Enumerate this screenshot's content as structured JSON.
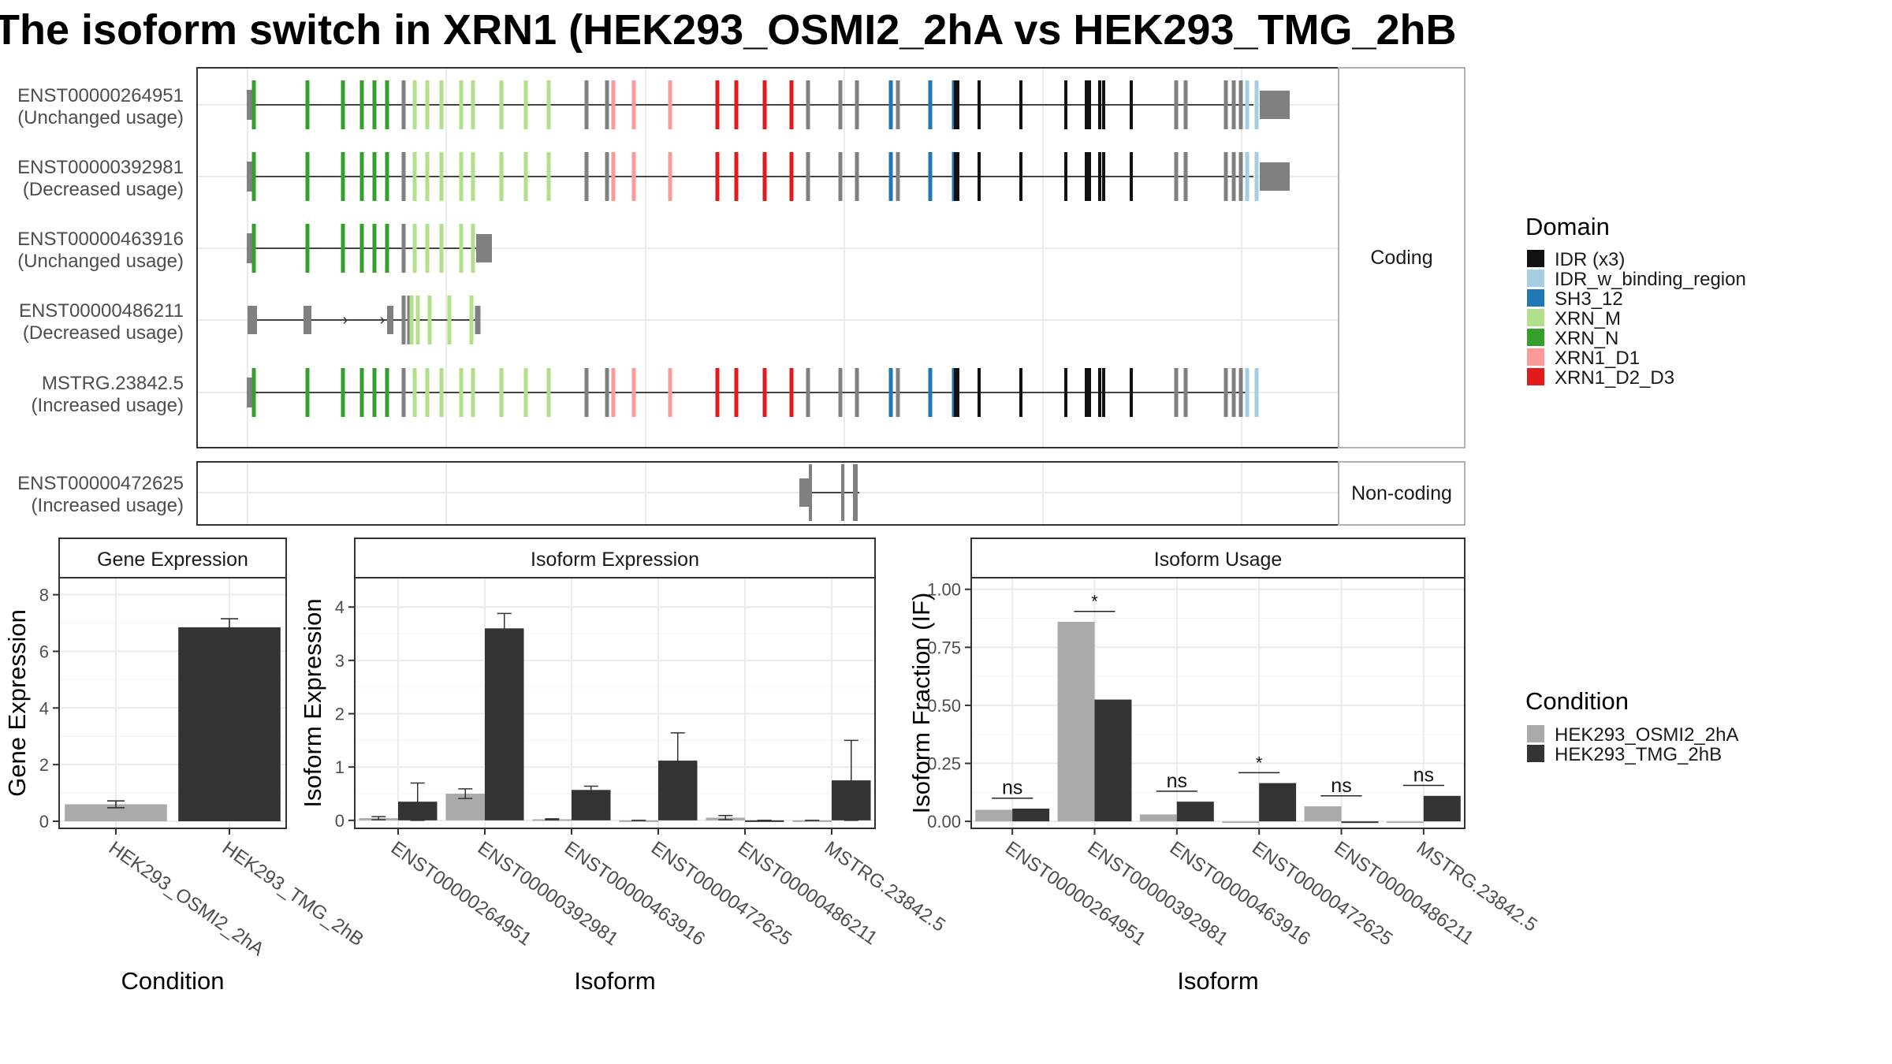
{
  "title": "The isoform switch in XRN1 (HEK293_OSMI2_2hA vs HEK293_TMG_2hB",
  "colors": {
    "IDR": "#111111",
    "IDR_w_binding_region": "#a6cee3",
    "SH3_12": "#1f78b4",
    "XRN_M": "#b2df8a",
    "XRN_N": "#33a02c",
    "XRN1_D1": "#fb9a99",
    "XRN1_D2_D3": "#e31a1c",
    "none": "#808080",
    "condA": "#aaaaaa",
    "condB": "#333333",
    "grid": "#ebebeb",
    "strip_bg": "#ffffff"
  },
  "transcripts": {
    "panels": [
      {
        "strip": "Coding",
        "rows": [
          {
            "id": "ENST00000264951",
            "usage": "(Unchanged usage)",
            "type": "full"
          },
          {
            "id": "ENST00000392981",
            "usage": "(Decreased usage)",
            "type": "full"
          },
          {
            "id": "ENST00000463916",
            "usage": "(Unchanged usage)",
            "type": "short463"
          },
          {
            "id": "ENST00000486211",
            "usage": "(Decreased usage)",
            "type": "short486"
          },
          {
            "id": "MSTRG.23842.5",
            "usage": "(Increased usage)",
            "type": "mstrg"
          }
        ]
      },
      {
        "strip": "Non-coding",
        "rows": [
          {
            "id": "ENST00000472625",
            "usage": "(Increased usage)",
            "type": "nc472"
          }
        ]
      }
    ]
  },
  "legend_domain": {
    "title": "Domain",
    "items": [
      {
        "label": "IDR (x3)",
        "color": "#111111"
      },
      {
        "label": "IDR_w_binding_region",
        "color": "#a6cee3"
      },
      {
        "label": "SH3_12",
        "color": "#1f78b4"
      },
      {
        "label": "XRN_M",
        "color": "#b2df8a"
      },
      {
        "label": "XRN_N",
        "color": "#33a02c"
      },
      {
        "label": "XRN1_D1",
        "color": "#fb9a99"
      },
      {
        "label": "XRN1_D2_D3",
        "color": "#e31a1c"
      }
    ]
  },
  "legend_condition": {
    "title": "Condition",
    "items": [
      {
        "label": "HEK293_OSMI2_2hA",
        "color": "#aaaaaa"
      },
      {
        "label": "HEK293_TMG_2hB",
        "color": "#333333"
      }
    ]
  },
  "chart_data": [
    {
      "type": "bar",
      "title": "Gene Expression",
      "xlabel": "Condition",
      "ylabel": "Gene Expression",
      "ylim": [
        -0.25,
        8.6
      ],
      "yticks": [
        0,
        2,
        4,
        6,
        8
      ],
      "categories": [
        "HEK293_OSMI2_2hA",
        "HEK293_TMG_2hB"
      ],
      "values": [
        0.6,
        6.85
      ],
      "err": [
        0.12,
        0.3
      ],
      "fills": [
        "#aaaaaa",
        "#333333"
      ]
    },
    {
      "type": "bar",
      "title": "Isoform Expression",
      "xlabel": "Isoform",
      "ylabel": "Isoform Expression",
      "ylim": [
        -0.15,
        4.55
      ],
      "yticks": [
        0,
        1,
        2,
        3,
        4
      ],
      "categories": [
        "ENST00000264951",
        "ENST00000392981",
        "ENST00000463916",
        "ENST00000472625",
        "ENST00000486211",
        "MSTRG.23842.5"
      ],
      "series": [
        {
          "name": "HEK293_OSMI2_2hA",
          "color": "#aaaaaa",
          "values": [
            0.04,
            0.5,
            0.02,
            0.0,
            0.05,
            0.0
          ],
          "err": [
            0.03,
            0.09,
            0.01,
            0.0,
            0.04,
            0.0
          ]
        },
        {
          "name": "HEK293_TMG_2hB",
          "color": "#333333",
          "values": [
            0.35,
            3.6,
            0.57,
            1.12,
            0.0,
            0.75
          ],
          "err": [
            0.35,
            0.28,
            0.07,
            0.52,
            0.0,
            0.75
          ]
        }
      ]
    },
    {
      "type": "bar",
      "title": "Isoform Usage",
      "xlabel": "Isoform",
      "ylabel": "Isoform Fraction (IF)",
      "ylim": [
        -0.03,
        1.05
      ],
      "yticks": [
        0.0,
        0.25,
        0.5,
        0.75,
        1.0
      ],
      "ytick_labels": [
        "0.00",
        "0.25",
        "0.50",
        "0.75",
        "1.00"
      ],
      "categories": [
        "ENST00000264951",
        "ENST00000392981",
        "ENST00000463916",
        "ENST00000472625",
        "ENST00000486211",
        "MSTRG.23842.5"
      ],
      "series": [
        {
          "name": "HEK293_OSMI2_2hA",
          "color": "#aaaaaa",
          "values": [
            0.05,
            0.86,
            0.03,
            0.0,
            0.065,
            0.0
          ]
        },
        {
          "name": "HEK293_TMG_2hB",
          "color": "#333333",
          "values": [
            0.055,
            0.525,
            0.085,
            0.165,
            0.0,
            0.11
          ]
        }
      ],
      "significance": [
        {
          "label": "ns",
          "y": 0.1
        },
        {
          "label": "*",
          "y": 0.905
        },
        {
          "label": "ns",
          "y": 0.13
        },
        {
          "label": "*",
          "y": 0.21
        },
        {
          "label": "ns",
          "y": 0.11
        },
        {
          "label": "ns",
          "y": 0.155
        }
      ]
    }
  ]
}
